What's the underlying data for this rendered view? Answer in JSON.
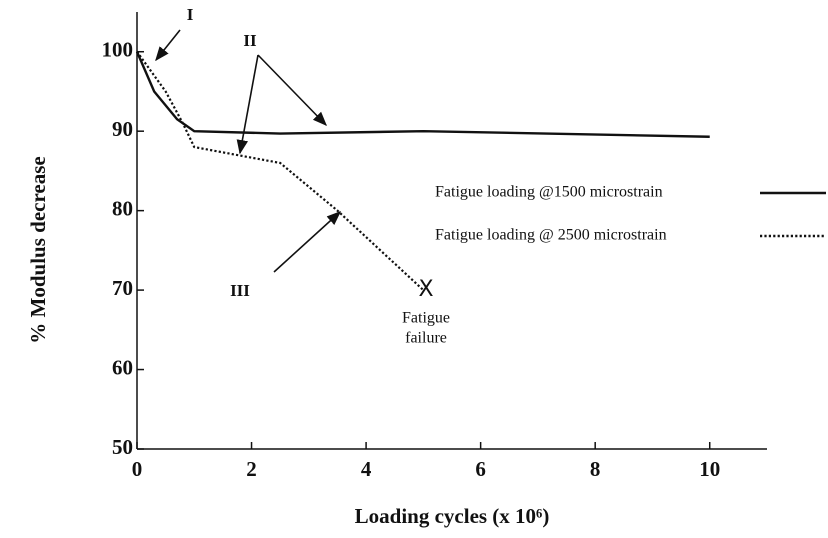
{
  "chart_data": {
    "type": "line",
    "x_label": "Loading cycles (x 10⁶)",
    "y_label": "% Modulus decrease",
    "xlim": [
      0,
      11
    ],
    "xticks": [
      0,
      2,
      4,
      6,
      8,
      10
    ],
    "ylim": [
      50,
      105
    ],
    "yticks": [
      50,
      60,
      70,
      80,
      90,
      100
    ],
    "series": [
      {
        "name": "Fatigue loading @1500 microstrain",
        "color": "#111111",
        "style": "solid",
        "x": [
          0,
          0.3,
          0.7,
          1,
          2.5,
          5,
          10
        ],
        "values": [
          100,
          95,
          91.5,
          90,
          89.7,
          90,
          89.3
        ]
      },
      {
        "name": "Fatigue loading @ 2500 microstrain",
        "color": "#111111",
        "style": "dotted",
        "x": [
          0,
          0.5,
          0.8,
          1,
          2.5,
          3.5,
          5
        ],
        "values": [
          100,
          95,
          91,
          88,
          86,
          80,
          70
        ]
      }
    ],
    "annotations": [
      "I",
      "II",
      "III",
      "X",
      "Fatigue",
      "failure"
    ]
  }
}
